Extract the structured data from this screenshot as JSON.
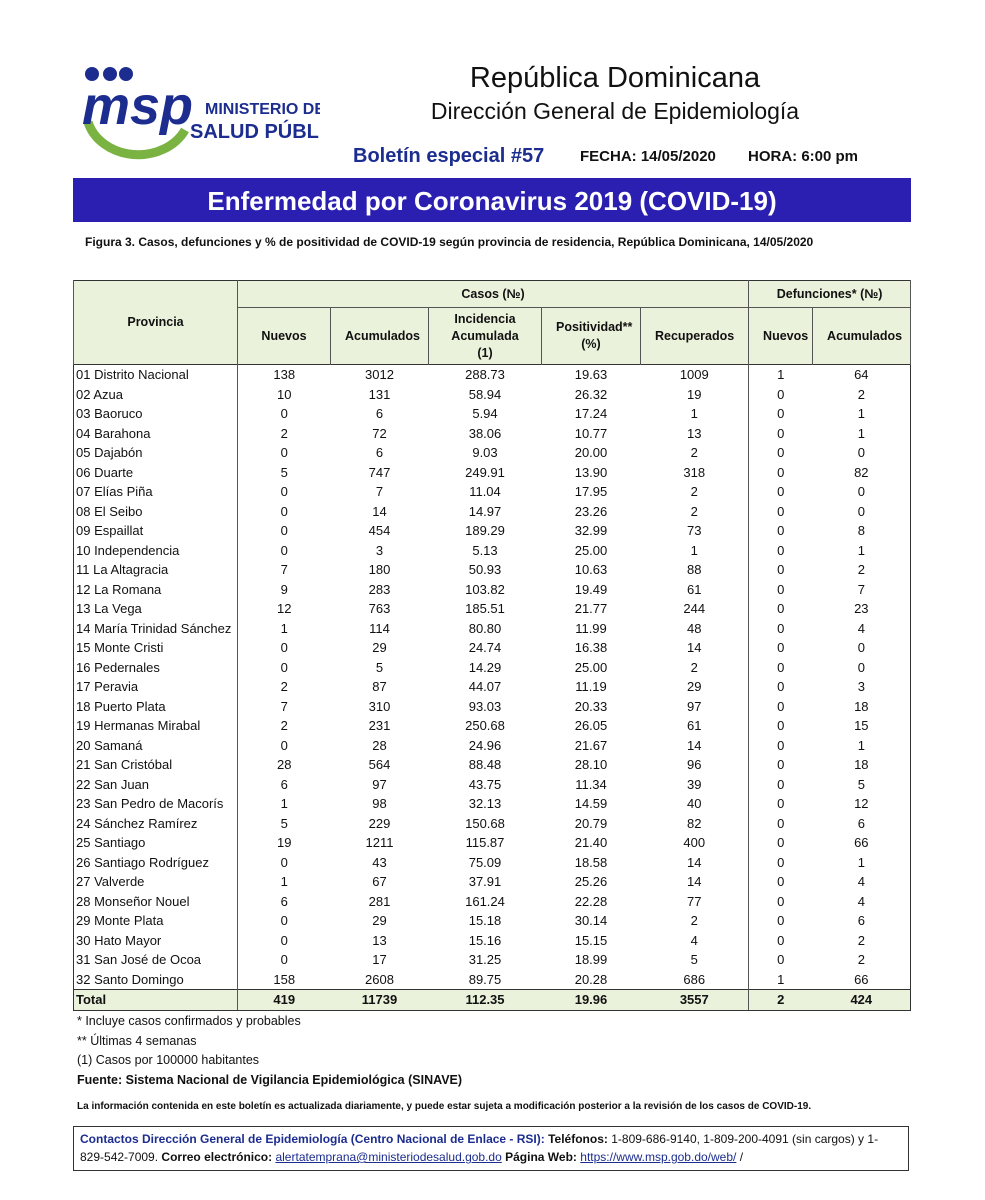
{
  "header": {
    "logo": {
      "mark": "msp",
      "line1": "MINISTERIO DE",
      "line2": "SALUD PÚBLICA"
    },
    "country": "República Dominicana",
    "agency": "Dirección General de Epidemiología",
    "bulletin": "Boletín especial #57",
    "date": "FECHA: 14/05/2020",
    "time": "HORA: 6:00 pm"
  },
  "banner": "Enfermedad por Coronavirus 2019 (COVID-19)",
  "caption": "Figura 3. Casos, defunciones y % de positividad de COVID-19 según provincia de residencia, República Dominicana, 14/05/2020",
  "table": {
    "province_header": "Provincia",
    "cases_header": "Casos (№)",
    "deaths_header": "Defunciones* (№)",
    "columns": [
      "Nuevos",
      "Acumulados",
      "Incidencia Acumulada (1)",
      "Positividad** (%)",
      "Recuperados",
      "Nuevos",
      "Acumulados"
    ],
    "rows": [
      [
        "01 Distrito Nacional",
        "138",
        "3012",
        "288.73",
        "19.63",
        "1009",
        "1",
        "64"
      ],
      [
        "02 Azua",
        "10",
        "131",
        "58.94",
        "26.32",
        "19",
        "0",
        "2"
      ],
      [
        "03 Baoruco",
        "0",
        "6",
        "5.94",
        "17.24",
        "1",
        "0",
        "1"
      ],
      [
        "04 Barahona",
        "2",
        "72",
        "38.06",
        "10.77",
        "13",
        "0",
        "1"
      ],
      [
        "05 Dajabón",
        "0",
        "6",
        "9.03",
        "20.00",
        "2",
        "0",
        "0"
      ],
      [
        "06 Duarte",
        "5",
        "747",
        "249.91",
        "13.90",
        "318",
        "0",
        "82"
      ],
      [
        "07 Elías Piña",
        "0",
        "7",
        "11.04",
        "17.95",
        "2",
        "0",
        "0"
      ],
      [
        "08 El Seibo",
        "0",
        "14",
        "14.97",
        "23.26",
        "2",
        "0",
        "0"
      ],
      [
        "09 Espaillat",
        "0",
        "454",
        "189.29",
        "32.99",
        "73",
        "0",
        "8"
      ],
      [
        "10 Independencia",
        "0",
        "3",
        "5.13",
        "25.00",
        "1",
        "0",
        "1"
      ],
      [
        "11 La Altagracia",
        "7",
        "180",
        "50.93",
        "10.63",
        "88",
        "0",
        "2"
      ],
      [
        "12 La Romana",
        "9",
        "283",
        "103.82",
        "19.49",
        "61",
        "0",
        "7"
      ],
      [
        "13 La Vega",
        "12",
        "763",
        "185.51",
        "21.77",
        "244",
        "0",
        "23"
      ],
      [
        "14 María Trinidad Sánchez",
        "1",
        "114",
        "80.80",
        "11.99",
        "48",
        "0",
        "4"
      ],
      [
        "15 Monte Cristi",
        "0",
        "29",
        "24.74",
        "16.38",
        "14",
        "0",
        "0"
      ],
      [
        "16 Pedernales",
        "0",
        "5",
        "14.29",
        "25.00",
        "2",
        "0",
        "0"
      ],
      [
        "17 Peravia",
        "2",
        "87",
        "44.07",
        "11.19",
        "29",
        "0",
        "3"
      ],
      [
        "18 Puerto Plata",
        "7",
        "310",
        "93.03",
        "20.33",
        "97",
        "0",
        "18"
      ],
      [
        "19 Hermanas Mirabal",
        "2",
        "231",
        "250.68",
        "26.05",
        "61",
        "0",
        "15"
      ],
      [
        "20 Samaná",
        "0",
        "28",
        "24.96",
        "21.67",
        "14",
        "0",
        "1"
      ],
      [
        "21 San Cristóbal",
        "28",
        "564",
        "88.48",
        "28.10",
        "96",
        "0",
        "18"
      ],
      [
        "22 San Juan",
        "6",
        "97",
        "43.75",
        "11.34",
        "39",
        "0",
        "5"
      ],
      [
        "23 San Pedro de Macorís",
        "1",
        "98",
        "32.13",
        "14.59",
        "40",
        "0",
        "12"
      ],
      [
        "24 Sánchez Ramírez",
        "5",
        "229",
        "150.68",
        "20.79",
        "82",
        "0",
        "6"
      ],
      [
        "25 Santiago",
        "19",
        "1211",
        "115.87",
        "21.40",
        "400",
        "0",
        "66"
      ],
      [
        "26 Santiago Rodríguez",
        "0",
        "43",
        "75.09",
        "18.58",
        "14",
        "0",
        "1"
      ],
      [
        "27 Valverde",
        "1",
        "67",
        "37.91",
        "25.26",
        "14",
        "0",
        "4"
      ],
      [
        "28 Monseñor Nouel",
        "6",
        "281",
        "161.24",
        "22.28",
        "77",
        "0",
        "4"
      ],
      [
        "29 Monte Plata",
        "0",
        "29",
        "15.18",
        "30.14",
        "2",
        "0",
        "6"
      ],
      [
        "30 Hato Mayor",
        "0",
        "13",
        "15.16",
        "15.15",
        "4",
        "0",
        "2"
      ],
      [
        "31 San José de Ocoa",
        "0",
        "17",
        "31.25",
        "18.99",
        "5",
        "0",
        "2"
      ],
      [
        "32 Santo Domingo",
        "158",
        "2608",
        "89.75",
        "20.28",
        "686",
        "1",
        "66"
      ]
    ],
    "total": [
      "Total",
      "419",
      "11739",
      "112.35",
      "19.96",
      "3557",
      "2",
      "424"
    ]
  },
  "notes": [
    "* Incluye casos confirmados y probables",
    "** Últimas 4 semanas",
    "(1) Casos por 100000 habitantes"
  ],
  "source": "Fuente: Sistema Nacional de Vigilancia Epidemiológica (SINAVE)",
  "disclaimer": "La información contenida en este boletín es actualizada diariamente, y puede estar sujeta a modificación posterior a la revisión de los casos de COVID-19.",
  "contact": {
    "heading": "Contactos Dirección General de Epidemiología (Centro Nacional de Enlace - RSI):",
    "phones_label": "Teléfonos:",
    "phones": "1-809-686-9140, 1-809-200-4091 (sin cargos) y 1-829-542-7009.",
    "email_label": "Correo electrónico:",
    "email": "alertatemprana@ministeriodesalud.gob.do",
    "web_label": "Página Web:",
    "web": "https://www.msp.gob.do/web/",
    "end": "/"
  }
}
